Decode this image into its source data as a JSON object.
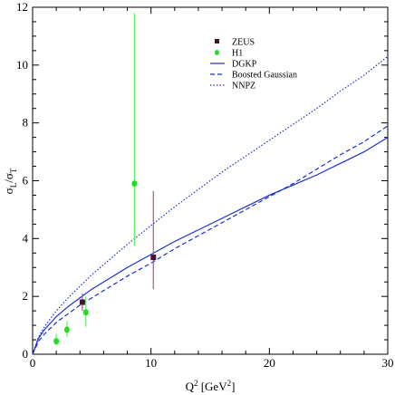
{
  "chart_data": {
    "type": "line",
    "title": "",
    "xlabel": {
      "base": "Q",
      "sup": "2",
      "unit_open": " [GeV",
      "unit_sup": "2",
      "unit_close": "]"
    },
    "ylabel": {
      "base": "σ",
      "sub1": "L",
      "slash": "/σ",
      "sub2": "T"
    },
    "xlim": [
      0,
      30
    ],
    "ylim": [
      0,
      12
    ],
    "xticks": [
      0,
      10,
      20,
      30
    ],
    "yticks": [
      0,
      2,
      4,
      6,
      8,
      10,
      12
    ],
    "grid": false,
    "legend_position": "top-center",
    "colors": {
      "zeus": "#4a1030",
      "zeus_err": "#9a5c8c",
      "h1": "#22dd22",
      "h1_err": "#66ee66",
      "curves": "#1a2fd0"
    },
    "series": [
      {
        "name": "ZEUS",
        "kind": "points",
        "marker": "square",
        "points": [
          {
            "x": 4.2,
            "y": 1.8,
            "ylo": 1.5,
            "yhi": 2.1
          },
          {
            "x": 10.2,
            "y": 3.35,
            "ylo": 2.25,
            "yhi": 5.65
          }
        ]
      },
      {
        "name": "H1",
        "kind": "points",
        "marker": "circle",
        "points": [
          {
            "x": 2.0,
            "y": 0.45,
            "ylo": 0.3,
            "yhi": 0.7
          },
          {
            "x": 2.9,
            "y": 0.85,
            "ylo": 0.6,
            "yhi": 1.15
          },
          {
            "x": 4.5,
            "y": 1.45,
            "ylo": 0.95,
            "yhi": 2.0
          },
          {
            "x": 8.6,
            "y": 5.9,
            "ylo": 3.75,
            "yhi": 11.8
          }
        ]
      },
      {
        "name": "DGKP",
        "kind": "line",
        "dash": "solid",
        "points": [
          [
            0,
            0
          ],
          [
            0.5,
            0.55
          ],
          [
            1,
            0.85
          ],
          [
            2,
            1.3
          ],
          [
            3,
            1.65
          ],
          [
            4,
            1.95
          ],
          [
            5,
            2.25
          ],
          [
            6,
            2.5
          ],
          [
            8,
            3.0
          ],
          [
            10,
            3.45
          ],
          [
            12,
            3.9
          ],
          [
            14,
            4.3
          ],
          [
            16,
            4.7
          ],
          [
            18,
            5.1
          ],
          [
            20,
            5.5
          ],
          [
            22,
            5.85
          ],
          [
            24,
            6.2
          ],
          [
            26,
            6.6
          ],
          [
            28,
            7.0
          ],
          [
            30,
            7.5
          ]
        ]
      },
      {
        "name": "Boosted Gaussian",
        "kind": "line",
        "dash": "dashed",
        "points": [
          [
            0,
            0
          ],
          [
            0.5,
            0.45
          ],
          [
            1,
            0.7
          ],
          [
            2,
            1.1
          ],
          [
            3,
            1.4
          ],
          [
            4,
            1.7
          ],
          [
            5,
            1.95
          ],
          [
            6,
            2.2
          ],
          [
            8,
            2.7
          ],
          [
            10,
            3.15
          ],
          [
            12,
            3.65
          ],
          [
            14,
            4.1
          ],
          [
            16,
            4.55
          ],
          [
            18,
            5.0
          ],
          [
            20,
            5.45
          ],
          [
            22,
            5.9
          ],
          [
            24,
            6.4
          ],
          [
            26,
            6.9
          ],
          [
            28,
            7.35
          ],
          [
            30,
            7.9
          ]
        ]
      },
      {
        "name": "NNPZ",
        "kind": "line",
        "dash": "dotted",
        "points": [
          [
            0,
            0
          ],
          [
            0.5,
            0.6
          ],
          [
            1,
            0.95
          ],
          [
            2,
            1.5
          ],
          [
            3,
            1.95
          ],
          [
            4,
            2.35
          ],
          [
            5,
            2.75
          ],
          [
            6,
            3.1
          ],
          [
            8,
            3.8
          ],
          [
            10,
            4.45
          ],
          [
            12,
            5.1
          ],
          [
            14,
            5.7
          ],
          [
            16,
            6.3
          ],
          [
            18,
            6.85
          ],
          [
            20,
            7.4
          ],
          [
            22,
            7.95
          ],
          [
            24,
            8.5
          ],
          [
            26,
            9.1
          ],
          [
            28,
            9.65
          ],
          [
            30,
            10.3
          ]
        ]
      }
    ]
  }
}
